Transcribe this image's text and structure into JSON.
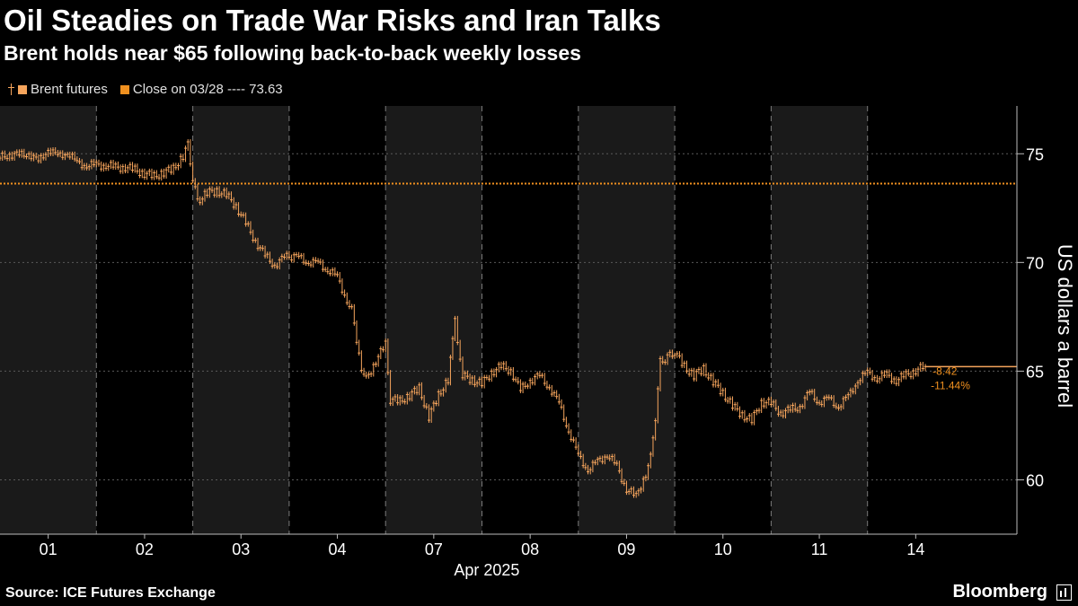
{
  "title": "Oil Steadies on Trade War Risks and Iran Talks",
  "subtitle": "Brent holds near $65 following back-to-back weekly losses",
  "legend": {
    "series_label": "Brent futures",
    "ref_label": "Close on 03/28 ---- 73.63"
  },
  "source": "Source: ICE Futures Exchange",
  "brand": "Bloomberg",
  "colors": {
    "background": "#000000",
    "price": "#f5a45c",
    "ref_line": "#f0901f",
    "shade": "#1a1a1a",
    "grid": "#5a5a5a",
    "text": "#ffffff"
  },
  "chart_data": {
    "type": "line",
    "title": "Oil Steadies on Trade War Risks and Iran Talks",
    "ylabel": "US dollars a barrel",
    "xlabel": "Apr 2025",
    "ylim": [
      57.5,
      77.2
    ],
    "yticks": [
      60,
      65,
      70,
      75
    ],
    "categories": [
      "01",
      "02",
      "03",
      "04",
      "07",
      "08",
      "09",
      "10",
      "11",
      "14"
    ],
    "x_month_label": "Apr 2025",
    "reference_line": {
      "label": "Close on 03/28",
      "value": 73.63
    },
    "annotations": {
      "change": "-8.42",
      "change_pct": "-11.44%"
    },
    "last_value": 65.21,
    "series": [
      {
        "name": "Brent futures",
        "points": [
          [
            0.0,
            74.8
          ],
          [
            0.1,
            75.0
          ],
          [
            0.2,
            74.9
          ],
          [
            0.3,
            75.05
          ],
          [
            0.4,
            74.6
          ],
          [
            0.5,
            75.25
          ],
          [
            0.6,
            74.85
          ],
          [
            0.7,
            75.1
          ],
          [
            0.8,
            74.55
          ],
          [
            0.9,
            74.5
          ],
          [
            1.0,
            74.45
          ],
          [
            1.1,
            74.5
          ],
          [
            1.2,
            74.35
          ],
          [
            1.3,
            74.4
          ],
          [
            1.4,
            74.25
          ],
          [
            1.5,
            74.1
          ],
          [
            1.6,
            73.95
          ],
          [
            1.7,
            74.15
          ],
          [
            1.8,
            74.3
          ],
          [
            1.9,
            74.9
          ],
          [
            1.95,
            75.4
          ],
          [
            2.0,
            73.9
          ],
          [
            2.05,
            72.8
          ],
          [
            2.15,
            73.2
          ],
          [
            2.25,
            73.3
          ],
          [
            2.35,
            73.1
          ],
          [
            2.45,
            72.6
          ],
          [
            2.55,
            71.8
          ],
          [
            2.65,
            71.0
          ],
          [
            2.75,
            70.3
          ],
          [
            2.85,
            69.9
          ],
          [
            2.95,
            70.2
          ],
          [
            3.0,
            70.3
          ],
          [
            3.1,
            70.2
          ],
          [
            3.2,
            70.05
          ],
          [
            3.3,
            69.95
          ],
          [
            3.4,
            69.7
          ],
          [
            3.5,
            69.3
          ],
          [
            3.6,
            68.3
          ],
          [
            3.65,
            67.8
          ],
          [
            3.75,
            65.2
          ],
          [
            3.8,
            64.6
          ],
          [
            3.9,
            65.5
          ],
          [
            4.0,
            66.2
          ],
          [
            4.05,
            63.7
          ],
          [
            4.15,
            63.6
          ],
          [
            4.25,
            63.9
          ],
          [
            4.35,
            64.2
          ],
          [
            4.45,
            62.9
          ],
          [
            4.55,
            63.9
          ],
          [
            4.65,
            64.6
          ],
          [
            4.72,
            67.3
          ],
          [
            4.8,
            64.8
          ],
          [
            4.9,
            64.6
          ],
          [
            5.0,
            64.4
          ],
          [
            5.1,
            64.95
          ],
          [
            5.2,
            65.2
          ],
          [
            5.3,
            65.05
          ],
          [
            5.4,
            64.1
          ],
          [
            5.5,
            64.6
          ],
          [
            5.6,
            64.75
          ],
          [
            5.7,
            64.3
          ],
          [
            5.8,
            63.5
          ],
          [
            5.9,
            62.3
          ],
          [
            6.0,
            61.1
          ],
          [
            6.1,
            60.5
          ],
          [
            6.2,
            60.8
          ],
          [
            6.3,
            61.2
          ],
          [
            6.4,
            60.6
          ],
          [
            6.5,
            59.6
          ],
          [
            6.6,
            59.2
          ],
          [
            6.7,
            60.3
          ],
          [
            6.75,
            61.0
          ],
          [
            6.8,
            62.9
          ],
          [
            6.85,
            65.4
          ],
          [
            7.0,
            65.9
          ],
          [
            7.1,
            65.2
          ],
          [
            7.2,
            64.8
          ],
          [
            7.3,
            65.1
          ],
          [
            7.4,
            64.5
          ],
          [
            7.5,
            64.0
          ],
          [
            7.6,
            63.4
          ],
          [
            7.7,
            63.0
          ],
          [
            7.8,
            62.7
          ],
          [
            7.9,
            63.6
          ],
          [
            8.0,
            63.5
          ],
          [
            8.1,
            63.1
          ],
          [
            8.2,
            63.2
          ],
          [
            8.3,
            63.4
          ],
          [
            8.4,
            64.0
          ],
          [
            8.5,
            63.6
          ],
          [
            8.6,
            63.7
          ],
          [
            8.7,
            63.4
          ],
          [
            8.8,
            63.8
          ],
          [
            8.9,
            64.6
          ],
          [
            9.0,
            64.9
          ],
          [
            9.1,
            64.7
          ],
          [
            9.2,
            64.8
          ],
          [
            9.3,
            64.6
          ],
          [
            9.4,
            64.8
          ],
          [
            9.5,
            65.05
          ],
          [
            9.6,
            65.21
          ]
        ]
      }
    ]
  }
}
